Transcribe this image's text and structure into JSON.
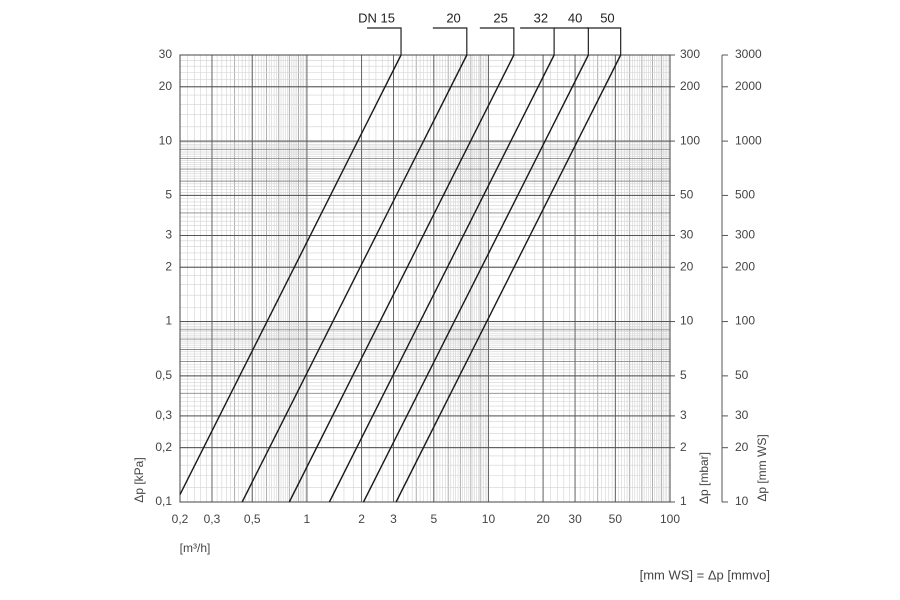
{
  "chart_data": {
    "type": "line",
    "x_label": "[m³/h]",
    "y_label": "Δp [kPa]",
    "y2_label": "Δp [mbar]",
    "y3_label": "Δp [mm WS]",
    "note": "[mm WS] = Δp [mmvo]",
    "xscale": "log",
    "yscale": "log",
    "grid": true,
    "minor_grid": true,
    "xlim": [
      0.2,
      100
    ],
    "ylim": [
      0.1,
      30
    ],
    "y2lim": [
      1,
      300
    ],
    "y3lim": [
      10,
      3000
    ],
    "xticks": [
      {
        "value": 0.2,
        "label": "0,2"
      },
      {
        "value": 0.3,
        "label": "0,3"
      },
      {
        "value": 0.5,
        "label": "0,5"
      },
      1,
      2,
      3,
      5,
      10,
      20,
      30,
      50,
      100
    ],
    "yticks": [
      {
        "value": 0.1,
        "label": "0,1"
      },
      {
        "value": 0.2,
        "label": "0,2"
      },
      {
        "value": 0.3,
        "label": "0,3"
      },
      {
        "value": 0.5,
        "label": "0,5"
      },
      1,
      2,
      3,
      5,
      10,
      20,
      30
    ],
    "y2ticks": [
      1,
      2,
      3,
      5,
      10,
      20,
      30,
      50,
      100,
      200,
      300
    ],
    "y3ticks": [
      10,
      20,
      30,
      50,
      100,
      200,
      300,
      500,
      1000,
      2000,
      3000
    ],
    "series": [
      {
        "name": "DN 15",
        "color": "#1a1a1a",
        "x": [
          0.2,
          3.3
        ],
        "values": [
          0.11,
          30
        ]
      },
      {
        "name": "20",
        "color": "#1a1a1a",
        "x": [
          0.44,
          7.6
        ],
        "values": [
          0.1,
          30
        ]
      },
      {
        "name": "25",
        "color": "#1a1a1a",
        "x": [
          0.8,
          13.8
        ],
        "values": [
          0.1,
          30
        ]
      },
      {
        "name": "32",
        "color": "#1a1a1a",
        "x": [
          1.33,
          23
        ],
        "values": [
          0.1,
          30
        ]
      },
      {
        "name": "40",
        "color": "#1a1a1a",
        "x": [
          2.05,
          35.5
        ],
        "values": [
          0.1,
          30
        ]
      },
      {
        "name": "50",
        "color": "#1a1a1a",
        "x": [
          3.1,
          53.5
        ],
        "values": [
          0.1,
          30
        ]
      }
    ]
  }
}
